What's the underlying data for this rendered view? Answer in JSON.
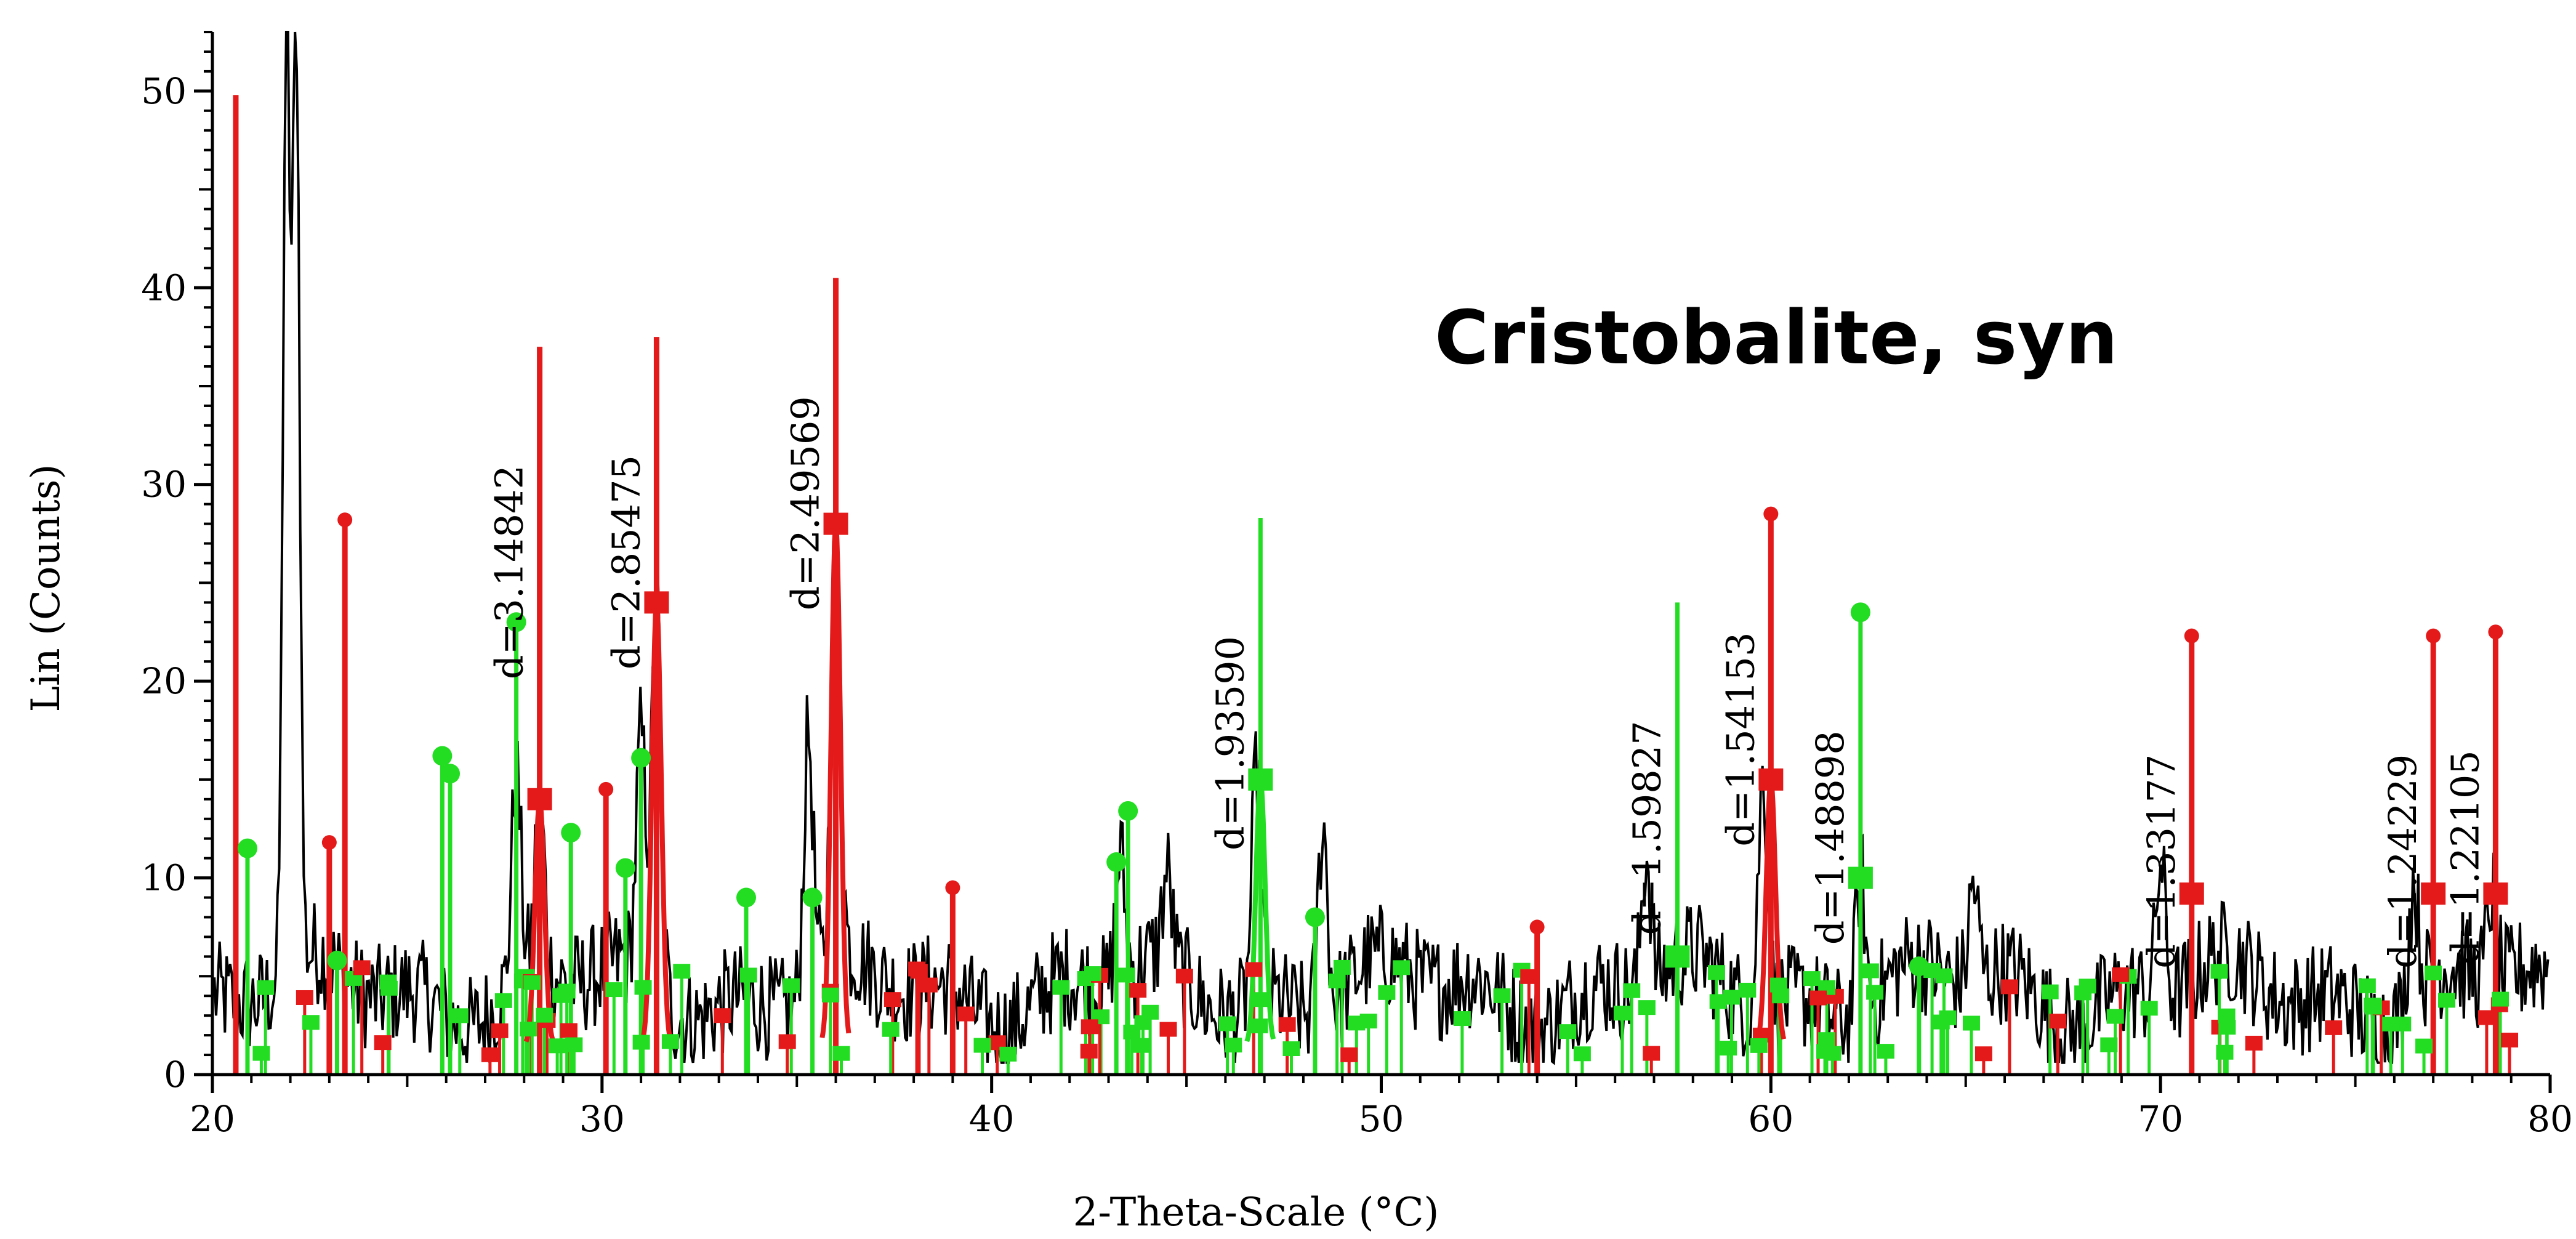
{
  "chart_data": {
    "type": "line",
    "title": "Cristobalite, syn",
    "xlabel": "2-Theta-Scale (°C)",
    "ylabel": "Lin (Counts)",
    "xlim": [
      20,
      80
    ],
    "ylim": [
      0,
      53
    ],
    "x_ticks": [
      "20",
      "30",
      "40",
      "50",
      "60",
      "70",
      "80"
    ],
    "y_ticks": [
      "0",
      "10",
      "20",
      "30",
      "40",
      "50"
    ],
    "grid": false,
    "colors": {
      "pattern": "#000000",
      "red_phase": "#e41a1a",
      "green_phase": "#22dd22"
    },
    "pattern_peaks": [
      {
        "x": 21.9,
        "y": 53
      },
      {
        "x": 22.15,
        "y": 53
      },
      {
        "x": 27.8,
        "y": 15
      },
      {
        "x": 28.4,
        "y": 14
      },
      {
        "x": 31.0,
        "y": 17
      },
      {
        "x": 31.4,
        "y": 24
      },
      {
        "x": 35.3,
        "y": 17
      },
      {
        "x": 36.0,
        "y": 28
      },
      {
        "x": 43.3,
        "y": 11
      },
      {
        "x": 44.5,
        "y": 10
      },
      {
        "x": 46.8,
        "y": 15
      },
      {
        "x": 48.5,
        "y": 12.5
      },
      {
        "x": 56.8,
        "y": 11
      },
      {
        "x": 59.8,
        "y": 15
      },
      {
        "x": 62.3,
        "y": 10
      },
      {
        "x": 65.2,
        "y": 9.5
      },
      {
        "x": 70.0,
        "y": 10.5
      },
      {
        "x": 76.5,
        "y": 9.5
      },
      {
        "x": 78.5,
        "y": 9
      }
    ],
    "reference_red": [
      {
        "x": 20.6,
        "y": 49.8
      },
      {
        "x": 23.0,
        "y": 11.8
      },
      {
        "x": 23.4,
        "y": 28.2
      },
      {
        "x": 28.4,
        "y": 37
      },
      {
        "x": 30.1,
        "y": 14.5
      },
      {
        "x": 31.4,
        "y": 37.5
      },
      {
        "x": 36.0,
        "y": 40.5
      },
      {
        "x": 39.0,
        "y": 9.5
      },
      {
        "x": 54.0,
        "y": 7.5
      },
      {
        "x": 60.0,
        "y": 28.5
      },
      {
        "x": 70.8,
        "y": 22.3
      },
      {
        "x": 77.0,
        "y": 22.3
      },
      {
        "x": 78.6,
        "y": 22.5
      }
    ],
    "reference_green": [
      {
        "x": 20.9,
        "y": 11.5
      },
      {
        "x": 23.2,
        "y": 5.8
      },
      {
        "x": 25.9,
        "y": 16.2
      },
      {
        "x": 26.1,
        "y": 15.3
      },
      {
        "x": 27.8,
        "y": 23
      },
      {
        "x": 29.2,
        "y": 12.3
      },
      {
        "x": 30.6,
        "y": 10.5
      },
      {
        "x": 31.0,
        "y": 16.1
      },
      {
        "x": 33.7,
        "y": 9
      },
      {
        "x": 35.4,
        "y": 9
      },
      {
        "x": 43.2,
        "y": 10.8
      },
      {
        "x": 43.5,
        "y": 13.4
      },
      {
        "x": 46.9,
        "y": 28.3
      },
      {
        "x": 48.3,
        "y": 8
      },
      {
        "x": 57.6,
        "y": 24
      },
      {
        "x": 62.3,
        "y": 23.5
      },
      {
        "x": 63.8,
        "y": 5.5
      }
    ],
    "annotations": [
      {
        "text": "d=3.14842",
        "x": 28.4,
        "y": 37,
        "color": "red"
      },
      {
        "text": "d=2.85475",
        "x": 31.4,
        "y": 37.5,
        "color": "red"
      },
      {
        "text": "d=2.49569",
        "x": 36.0,
        "y": 40.5,
        "color": "red"
      },
      {
        "text": "d=1.93590",
        "x": 46.9,
        "y": 28.3,
        "color": "green"
      },
      {
        "text": "d=1.59827",
        "x": 57.6,
        "y": 24,
        "color": "green"
      },
      {
        "text": "d=1.54153",
        "x": 60.0,
        "y": 28.5,
        "color": "red"
      },
      {
        "text": "d=1.48898",
        "x": 62.3,
        "y": 23.5,
        "color": "green"
      },
      {
        "text": "d=1.33177",
        "x": 70.8,
        "y": 22.3,
        "color": "red"
      },
      {
        "text": "d=1.24229",
        "x": 77.0,
        "y": 22.3,
        "color": "red"
      },
      {
        "text": "d=1.22105",
        "x": 78.6,
        "y": 22.5,
        "color": "red"
      }
    ]
  }
}
